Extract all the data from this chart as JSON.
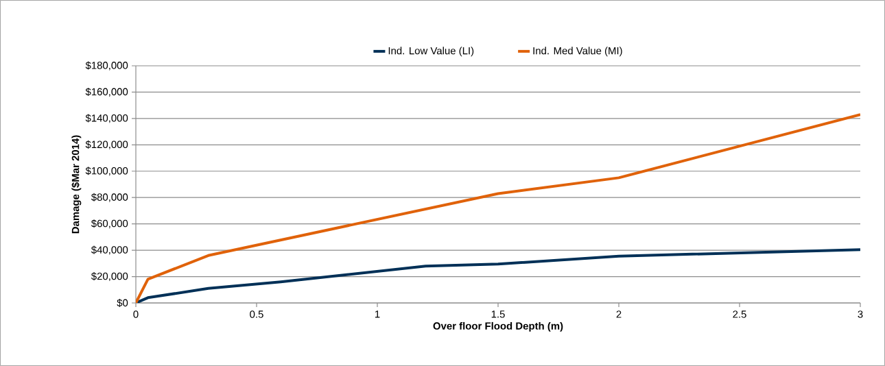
{
  "chart_data": {
    "type": "line",
    "xlabel": "Over floor Flood Depth (m)",
    "ylabel": "Damage ($Mar 2014)",
    "xlim": [
      0,
      3
    ],
    "xticks": [
      0,
      0.5,
      1,
      1.5,
      2,
      2.5,
      3
    ],
    "ylim": [
      0,
      180000
    ],
    "yticks": [
      {
        "value": 0,
        "label": "$0"
      },
      {
        "value": 20000,
        "label": "$20,000"
      },
      {
        "value": 40000,
        "label": "$40,000"
      },
      {
        "value": 60000,
        "label": "$60,000"
      },
      {
        "value": 80000,
        "label": "$80,000"
      },
      {
        "value": 100000,
        "label": "$100,000"
      },
      {
        "value": 120000,
        "label": "$120,000"
      },
      {
        "value": 140000,
        "label": "$140,000"
      },
      {
        "value": 160000,
        "label": "$160,000"
      },
      {
        "value": 180000,
        "label": "$180,000"
      }
    ],
    "grid": "y",
    "legend": "top",
    "marker": "none",
    "line_style": "solid",
    "series": [
      {
        "name": "Ind. Low Value (LI)",
        "color": "#003057",
        "x": [
          0,
          0.05,
          0.3,
          0.6,
          0.75,
          1.2,
          1.5,
          2,
          3
        ],
        "values": [
          0,
          4000,
          11000,
          16000,
          19000,
          28000,
          29500,
          35500,
          40500
        ]
      },
      {
        "name": "Ind. Med Value (MI)",
        "color": "#e0620a",
        "x": [
          0,
          0.05,
          0.3,
          1.5,
          2,
          3
        ],
        "values": [
          0,
          18000,
          36000,
          83000,
          95000,
          143000
        ]
      }
    ]
  }
}
